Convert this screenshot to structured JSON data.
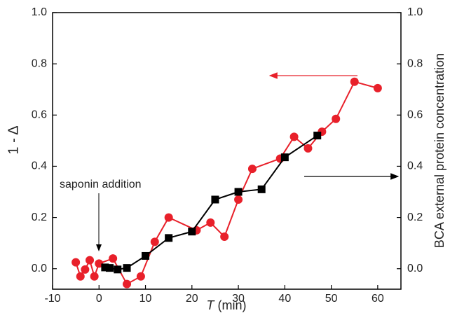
{
  "chart_data": {
    "type": "line",
    "y_label": "1 - Δ",
    "y2_label": "BCA external protein concentration",
    "x_label_symbol": "T",
    "x_label_unit": "(min)",
    "annotation": "saponin addition",
    "xlim": [
      -10,
      65
    ],
    "ylim": [
      -0.08,
      1.0
    ],
    "y2lim": [
      -0.08,
      1.0
    ],
    "xticks": [
      -10,
      0,
      10,
      20,
      30,
      40,
      50,
      60
    ],
    "yticks": [
      {
        "value": 0.0,
        "label": "0.0"
      },
      {
        "value": 0.2,
        "label": "0.2"
      },
      {
        "value": 0.4,
        "label": "0.4"
      },
      {
        "value": 0.6,
        "label": "0.6"
      },
      {
        "value": 0.8,
        "label": "0.8"
      },
      {
        "value": 1.0,
        "label": "1.0"
      }
    ],
    "y2ticks": [
      {
        "value": 0.0,
        "label": "0.0"
      },
      {
        "value": 0.2,
        "label": "0.2"
      },
      {
        "value": 0.4,
        "label": "0.4"
      },
      {
        "value": 0.6,
        "label": "0.6"
      },
      {
        "value": 0.8,
        "label": "0.8"
      },
      {
        "value": 1.0,
        "label": "1.0"
      }
    ],
    "series": [
      {
        "color": "#e8202a",
        "marker": "circle",
        "axis": "y",
        "x": [
          -5,
          -4,
          -3,
          -2,
          -1,
          0,
          3,
          6,
          9,
          12,
          15,
          21,
          24,
          27,
          30,
          33,
          39,
          42,
          45,
          48,
          51,
          55,
          60
        ],
        "values": [
          0.025,
          -0.03,
          -0.003,
          0.033,
          -0.03,
          0.02,
          0.04,
          -0.06,
          -0.03,
          0.105,
          0.2,
          0.15,
          0.18,
          0.125,
          0.27,
          0.39,
          0.43,
          0.515,
          0.47,
          0.535,
          0.585,
          0.73,
          0.705
        ]
      },
      {
        "color": "#000000",
        "marker": "square",
        "axis": "y2",
        "x": [
          1.3,
          2.3,
          4,
          6,
          10,
          15,
          20,
          25,
          30,
          35,
          40,
          47
        ],
        "values": [
          0.005,
          0.003,
          -0.003,
          0.003,
          0.05,
          0.12,
          0.145,
          0.27,
          0.3,
          0.31,
          0.435,
          0.52
        ]
      }
    ]
  }
}
